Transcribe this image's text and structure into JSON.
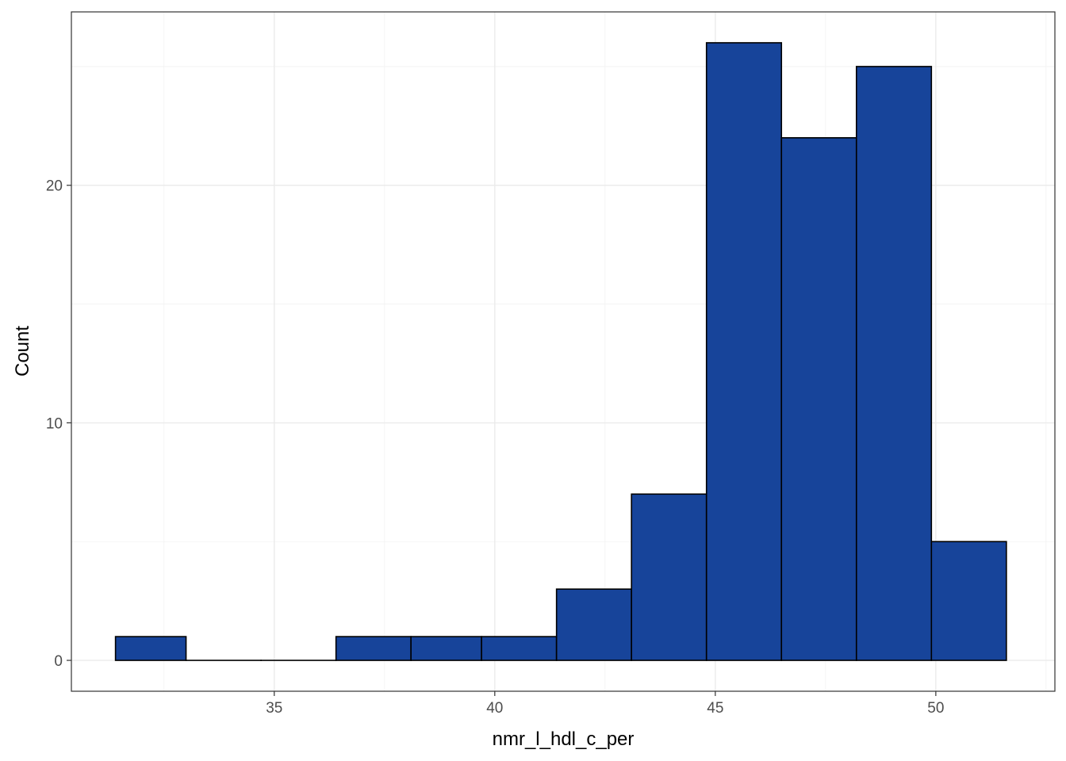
{
  "chart_data": {
    "type": "bar",
    "title": "",
    "xlabel": "nmr_l_hdl_c_per",
    "ylabel": "Count",
    "bin_edges": [
      31.4,
      33.0,
      34.7,
      36.4,
      38.1,
      39.7,
      41.4,
      43.1,
      44.8,
      46.5,
      48.2,
      49.9,
      51.6
    ],
    "values": [
      1,
      0,
      0,
      1,
      1,
      1,
      3,
      7,
      26,
      22,
      25,
      5
    ],
    "xlim": [
      30.4,
      52.7
    ],
    "ylim": [
      -1.3,
      27.3
    ],
    "x_ticks": [
      35,
      40,
      45,
      50
    ],
    "x_tick_labels": [
      "35",
      "40",
      "45",
      "50"
    ],
    "y_ticks": [
      0,
      10,
      20
    ],
    "y_tick_labels": [
      "0",
      "10",
      "20"
    ],
    "grid": true,
    "legend": "none",
    "bar_fill": "#17449a",
    "bar_stroke": "#000000"
  }
}
